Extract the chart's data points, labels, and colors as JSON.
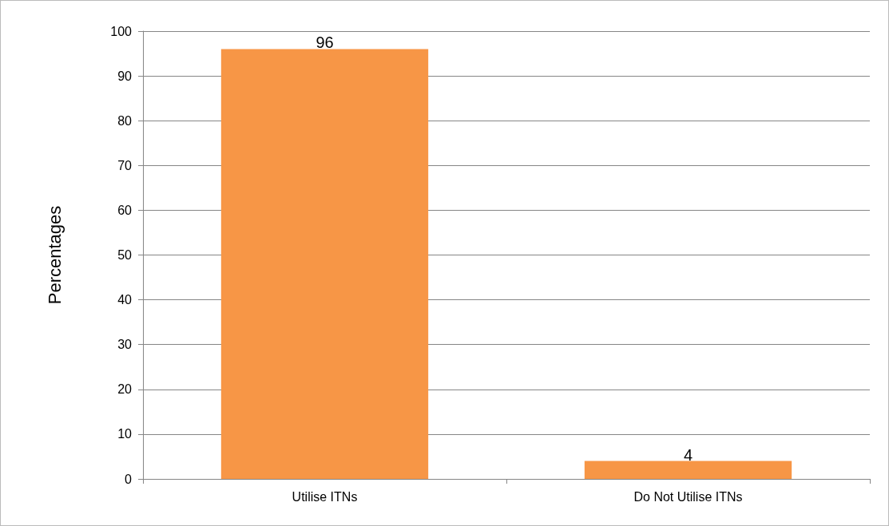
{
  "chart_data": {
    "type": "bar",
    "ylabel": "Percentages",
    "categories": [
      "Utilise ITNs",
      "Do Not Utilise ITNs"
    ],
    "values": [
      96,
      4
    ],
    "color": "#f79646",
    "ylim": [
      0,
      100
    ],
    "yticks": [
      0,
      10,
      20,
      30,
      40,
      50,
      60,
      70,
      80,
      90,
      100
    ],
    "grid": "y",
    "data_labels": true
  }
}
